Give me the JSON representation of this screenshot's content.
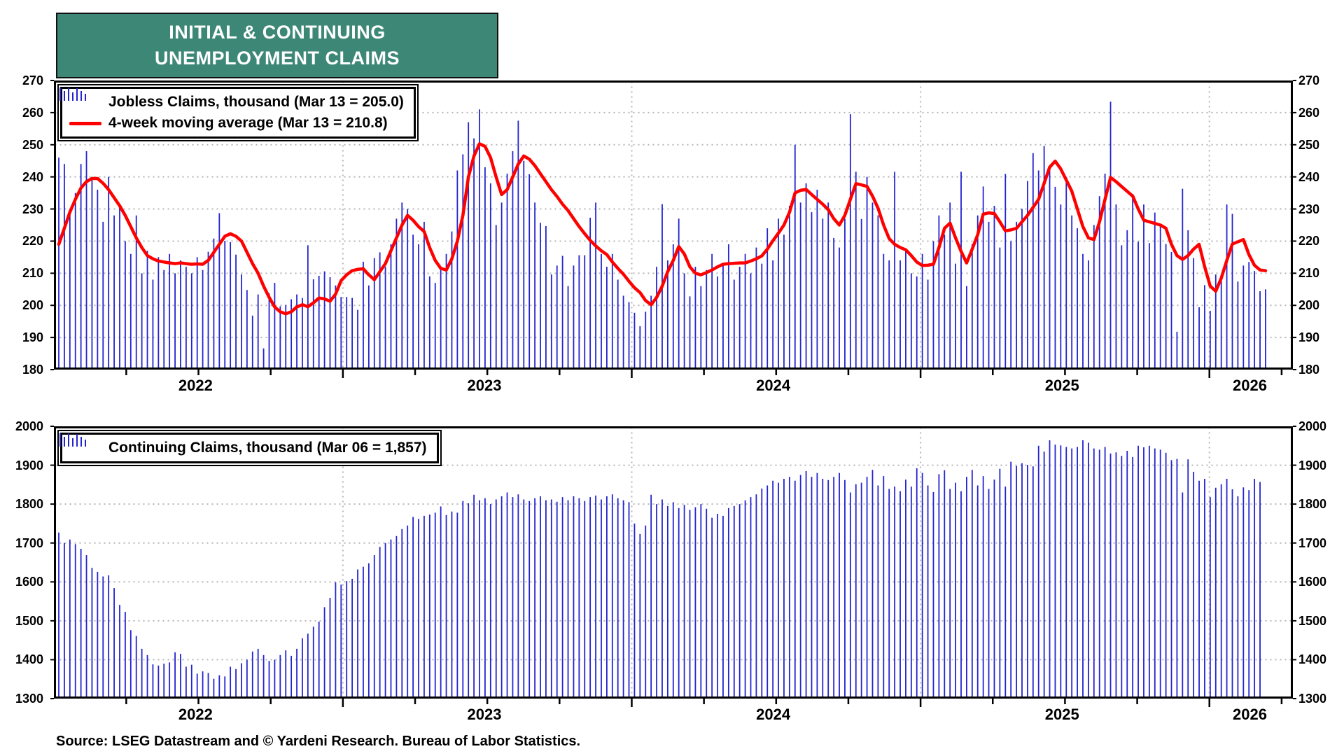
{
  "title": {
    "line1": "INITIAL & CONTINUING",
    "line2": "UNEMPLOYMENT CLAIMS"
  },
  "source": "Source: LSEG Datastream and © Yardeni Research. Bureau of Labor Statistics.",
  "colors": {
    "title_teal": "#3D8777",
    "bar_blue": "#2424CF",
    "ma_red": "#FF0000",
    "grid_gray": "#B5B5B5",
    "axis_black": "#000000"
  },
  "x_axis": {
    "start_year": 2022.016,
    "weeks_top": 219,
    "weeks_bottom": 218,
    "year_labels": [
      {
        "text": "2022",
        "pos": 2022.49
      },
      {
        "text": "2023",
        "pos": 2023.49
      },
      {
        "text": "2024",
        "pos": 2024.49
      },
      {
        "text": "2025",
        "pos": 2025.49
      },
      {
        "text": "2026",
        "pos": 2026.14
      }
    ],
    "quarter_tick_start": 2022.0,
    "quarter_tick_end": 2026.0
  },
  "chart_data": [
    {
      "type": "bar",
      "name": "initial-claims",
      "legend": [
        {
          "icon": "bars-icon",
          "label": "Jobless Claims, thousand (Mar 13 = 205.0)"
        },
        {
          "icon": "red-line-icon",
          "label": "4-week moving average (Mar 13 = 210.8)"
        }
      ],
      "ylim": [
        180,
        270
      ],
      "yticks": [
        270,
        260,
        250,
        240,
        230,
        220,
        210,
        200,
        190,
        180
      ],
      "grid": true,
      "legend_position": "top-left",
      "values": [
        246,
        244,
        230,
        235,
        244,
        248,
        240,
        236,
        226,
        240,
        228,
        231,
        220,
        216,
        228,
        210,
        217,
        208,
        215,
        211,
        216,
        210,
        214,
        212,
        210,
        215,
        211,
        216.7,
        220.8,
        228.7,
        220.1,
        219.7,
        215.8,
        209.6,
        204.8,
        196.8,
        203.4,
        186.6,
        203.7,
        207,
        199.7,
        200.1,
        201.9,
        203.4,
        202.3,
        218.7,
        208.1,
        209.2,
        210.6,
        208.8,
        206.2,
        202.6,
        202.6,
        202.3,
        198.6,
        213.6,
        206.2,
        214.7,
        216.5,
        212,
        219,
        227,
        232,
        230,
        222,
        219,
        226,
        209,
        207,
        212,
        216,
        223,
        242,
        247,
        257,
        252,
        261,
        243,
        238,
        225,
        232,
        241,
        248,
        257.5,
        245,
        240.8,
        232,
        225.7,
        224.7,
        209.6,
        212.4,
        215.4,
        206,
        212.4,
        215.6,
        215.6,
        227.3,
        232,
        216,
        212,
        216,
        208,
        203,
        201,
        197.7,
        193.5,
        198,
        203,
        212,
        231.5,
        214,
        219,
        227,
        210,
        202.8,
        212,
        206,
        211,
        216,
        209,
        213,
        219,
        208,
        212,
        216,
        210,
        218,
        213,
        224,
        214,
        227,
        222,
        231,
        250,
        232,
        238,
        229,
        236,
        227,
        232,
        221,
        218,
        227,
        259.5,
        241.6,
        226.9,
        240,
        232,
        228,
        216,
        214,
        241.6,
        214,
        217,
        210,
        209,
        216,
        208,
        220,
        228,
        222,
        232,
        213,
        241.6,
        206,
        219,
        228,
        237,
        226,
        231,
        218,
        240.9,
        220,
        226,
        230,
        238.7,
        247.4,
        242,
        249.6,
        242,
        236.9,
        231.4,
        240,
        228,
        224,
        216,
        214,
        225,
        234,
        241,
        263.4,
        231.4,
        218.7,
        223.4,
        234.7,
        219.8,
        231.4,
        219.4,
        228.9,
        224.9,
        219.1,
        216.6,
        191.8,
        236.3,
        223.4,
        214.7,
        199.4,
        206.3,
        198.3,
        209.6,
        208.1,
        231.4,
        228.5,
        207.4,
        212.4,
        213.5,
        210.7,
        204.4,
        205.0
      ],
      "ma4_values": [
        219,
        224,
        229,
        233,
        236.5,
        238.5,
        239.5,
        239.5,
        238,
        236,
        233.5,
        231,
        228,
        224.5,
        221,
        218,
        215.5,
        214.5,
        213.8,
        213.5,
        213.2,
        213,
        213.2,
        213,
        212.8,
        212.9,
        212.8,
        214,
        216.5,
        219,
        221.5,
        222.3,
        221.5,
        220,
        216.5,
        213,
        210,
        206,
        202.5,
        199.5,
        198,
        197.4,
        198,
        199.5,
        200.2,
        199.6,
        200.8,
        202.3,
        202,
        201.3,
        203.5,
        207.7,
        209.5,
        210.8,
        211.2,
        211.4,
        209.5,
        208,
        210.5,
        213,
        217,
        221,
        225,
        228,
        226.5,
        224.5,
        223,
        218,
        214,
        211.5,
        211,
        214.5,
        220,
        228,
        240,
        246.5,
        250.3,
        249.5,
        246,
        240,
        234.5,
        236,
        240,
        244,
        246.5,
        245.5,
        243.5,
        241,
        238.5,
        236,
        233.9,
        231.5,
        229.5,
        227,
        224.5,
        222.3,
        220.2,
        218.5,
        217,
        215.8,
        213.5,
        211.5,
        209.7,
        207.5,
        205.5,
        204,
        201.5,
        200.2,
        202.5,
        206,
        210.5,
        214,
        218.3,
        216,
        212,
        210,
        209.5,
        210.2,
        211,
        212,
        212.8,
        213,
        213.1,
        213.2,
        213.2,
        213.8,
        214.5,
        215.4,
        217.5,
        220.1,
        222.5,
        225,
        229,
        235,
        235.8,
        236.1,
        234.5,
        233,
        231.5,
        229.8,
        227,
        225,
        228,
        233,
        237.9,
        237.5,
        237,
        234,
        230.2,
        225,
        220.8,
        219,
        218,
        217.3,
        215.5,
        213.5,
        212.4,
        212.5,
        212.8,
        218,
        224,
        225.6,
        221,
        216.8,
        213.2,
        217.5,
        222,
        228.4,
        228.8,
        228.6,
        226,
        223.2,
        223.5,
        224,
        226,
        228,
        230.5,
        233,
        238,
        243,
        244.9,
        242.5,
        239,
        235.5,
        230,
        224.5,
        221,
        220.5,
        226,
        233,
        239.8,
        238.5,
        237,
        235.5,
        234,
        230,
        226.5,
        226,
        225.5,
        225,
        224,
        219,
        215.5,
        214.3,
        215.5,
        217.5,
        219,
        212,
        206,
        204.4,
        208.5,
        214,
        219.1,
        219.8,
        220.5,
        215.8,
        212.5,
        211,
        210.8
      ]
    },
    {
      "type": "bar",
      "name": "continuing-claims",
      "legend": [
        {
          "icon": "bars-icon",
          "label": "Continuing Claims, thousand (Mar 06 = 1,857)"
        }
      ],
      "ylim": [
        1300,
        2000
      ],
      "yticks": [
        2000,
        1900,
        1800,
        1700,
        1600,
        1500,
        1400,
        1300
      ],
      "grid": true,
      "legend_position": "top-left",
      "values": [
        1727,
        1700,
        1709,
        1697,
        1685,
        1669,
        1636,
        1626,
        1614,
        1617,
        1584,
        1541,
        1523,
        1476,
        1461,
        1428,
        1412,
        1388,
        1385,
        1390,
        1393,
        1419,
        1415,
        1382,
        1387,
        1364,
        1370,
        1366,
        1351,
        1360,
        1357,
        1382,
        1376,
        1391,
        1400,
        1421,
        1428,
        1412,
        1397,
        1400,
        1412,
        1424,
        1410,
        1428,
        1455,
        1467,
        1485,
        1498,
        1535,
        1559,
        1599,
        1593,
        1602,
        1608,
        1632,
        1639,
        1648,
        1669,
        1690,
        1700,
        1709,
        1718,
        1736,
        1745,
        1767,
        1762,
        1770,
        1773,
        1778,
        1794,
        1772,
        1781,
        1778,
        1808,
        1802,
        1824,
        1810,
        1815,
        1800,
        1812,
        1820,
        1830,
        1818,
        1825,
        1812,
        1808,
        1815,
        1820,
        1810,
        1812,
        1806,
        1818,
        1810,
        1820,
        1815,
        1808,
        1818,
        1822,
        1812,
        1820,
        1825,
        1815,
        1810,
        1805,
        1750,
        1723,
        1745,
        1824,
        1800,
        1812,
        1795,
        1805,
        1790,
        1798,
        1785,
        1792,
        1800,
        1788,
        1765,
        1775,
        1770,
        1790,
        1795,
        1800,
        1810,
        1818,
        1825,
        1840,
        1848,
        1860,
        1855,
        1865,
        1870,
        1860,
        1875,
        1885,
        1870,
        1880,
        1865,
        1862,
        1870,
        1880,
        1862,
        1830,
        1851,
        1855,
        1870,
        1888,
        1848,
        1872,
        1839,
        1845,
        1833,
        1863,
        1845,
        1892,
        1880,
        1848,
        1831,
        1877,
        1887,
        1839,
        1855,
        1833,
        1870,
        1888,
        1848,
        1872,
        1839,
        1863,
        1891,
        1845,
        1909,
        1898,
        1905,
        1901,
        1897,
        1950,
        1935,
        1964,
        1953,
        1951,
        1947,
        1943,
        1947,
        1964,
        1958,
        1943,
        1940,
        1947,
        1930,
        1933,
        1924,
        1937,
        1921,
        1950,
        1946,
        1950,
        1943,
        1940,
        1932,
        1913,
        1916,
        1830,
        1915,
        1883,
        1860,
        1865,
        1818,
        1842,
        1851,
        1865,
        1838,
        1820,
        1843,
        1836,
        1865,
        1857
      ]
    }
  ]
}
